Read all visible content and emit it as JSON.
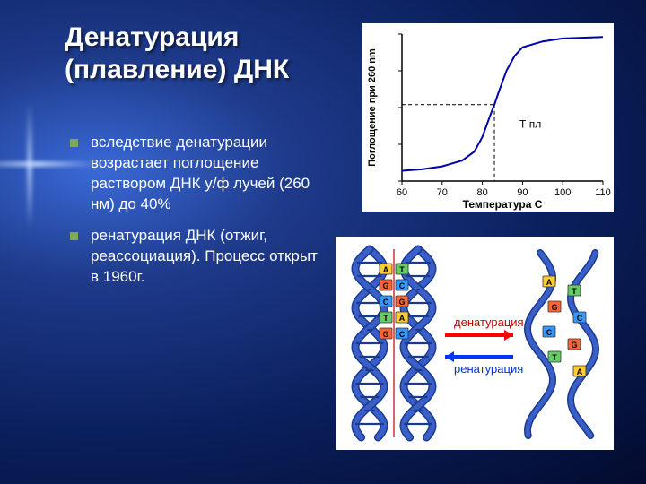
{
  "title_line1": "Денатурация",
  "title_line2": "(плавление) ДНК",
  "bullets": [
    "вследствие денатурации возрастает поглощение раствором ДНК у/ф лучей (260 нм) до 40%",
    "ренатурация ДНК (отжиг, реассоциация). Процесс открыт в 1960г."
  ],
  "chart": {
    "type": "line",
    "xlabel": "Температура С",
    "ylabel": "Поглощение при 260 nm",
    "xlim": [
      60,
      110
    ],
    "xticks": [
      60,
      70,
      80,
      90,
      100,
      110
    ],
    "ylim": [
      0,
      1
    ],
    "tpl_label": "Т пл",
    "tpl_x": 83,
    "background_color": "#ffffff",
    "axis_color": "#000000",
    "curve_color": "#0000aa",
    "curve_width": 2,
    "axis_fontsize": 11,
    "points": [
      [
        60,
        0.07
      ],
      [
        65,
        0.08
      ],
      [
        70,
        0.1
      ],
      [
        75,
        0.14
      ],
      [
        78,
        0.2
      ],
      [
        80,
        0.3
      ],
      [
        82,
        0.45
      ],
      [
        83,
        0.52
      ],
      [
        84,
        0.6
      ],
      [
        86,
        0.75
      ],
      [
        88,
        0.85
      ],
      [
        90,
        0.91
      ],
      [
        95,
        0.95
      ],
      [
        100,
        0.97
      ],
      [
        110,
        0.98
      ]
    ]
  },
  "dna": {
    "label_denat": "денатурация",
    "label_renat": "ренатурация",
    "label_fontsize": 13,
    "label_denat_color": "#cc0000",
    "label_renat_color": "#0033cc",
    "arrow_denat_color": "#ff0000",
    "arrow_renat_color": "#0033ff",
    "helix_strand_color": "#3a5fc8",
    "helix_outline": "#1a3a90",
    "base_colors": {
      "A": "#ffcc33",
      "T": "#66cc66",
      "G": "#ff6633",
      "C": "#3399ff"
    },
    "background_color": "#ffffff"
  }
}
